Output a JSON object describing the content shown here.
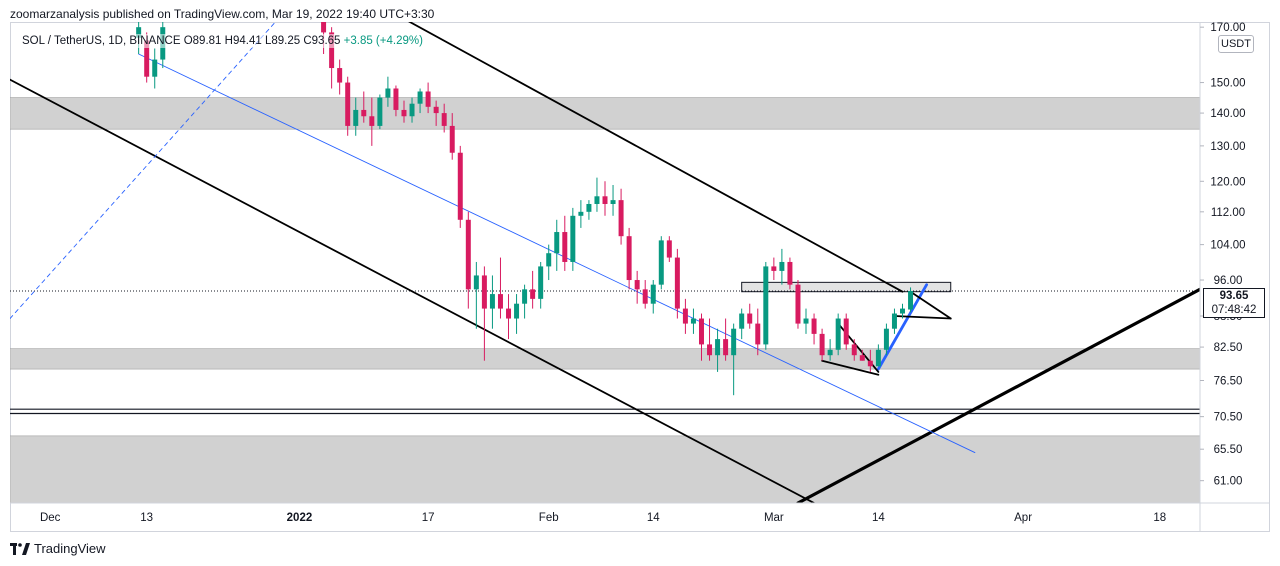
{
  "header": {
    "published_line": "zoomarzanalysis published on TradingView.com, Mar 19, 2022 19:40 UTC+3:30"
  },
  "legend": {
    "symbol": "SOL / TetherUS, 1D, BINANCE",
    "open": "O89.81",
    "high": "H94.41",
    "low": "L89.25",
    "close": "C93.65",
    "change": "+3.85 (+4.29%)"
  },
  "price_axis": {
    "currency": "USDT",
    "last_price": "93.65",
    "countdown": "07:48:42"
  },
  "footer": {
    "brand": "TradingView"
  },
  "colors": {
    "up": "#089981",
    "down": "#d81b60",
    "zone": "#d1d1d1",
    "trendline": "#000000",
    "blue": "#2962ff"
  },
  "chart_data": {
    "type": "candlestick",
    "y_scale": "log",
    "ylim": [
      58,
      172
    ],
    "xlim": [
      "2021-11-26",
      "2022-04-23"
    ],
    "y_ticks": [
      "170.00",
      "150.00",
      "140.00",
      "130.00",
      "120.00",
      "112.00",
      "104.00",
      "96.00",
      "88.50",
      "82.50",
      "76.50",
      "70.50",
      "65.50",
      "61.00"
    ],
    "x_ticks": [
      {
        "label": "Dec",
        "date": "2021-12-01"
      },
      {
        "label": "13",
        "date": "2021-12-13"
      },
      {
        "label": "2022",
        "date": "2022-01-01"
      },
      {
        "label": "17",
        "date": "2022-01-17"
      },
      {
        "label": "Feb",
        "date": "2022-02-01"
      },
      {
        "label": "14",
        "date": "2022-02-14"
      },
      {
        "label": "Mar",
        "date": "2022-03-01"
      },
      {
        "label": "14",
        "date": "2022-03-14"
      },
      {
        "label": "Apr",
        "date": "2022-04-01"
      },
      {
        "label": "18",
        "date": "2022-04-18"
      }
    ],
    "candles": [
      {
        "d": "2021-12-12",
        "o": 166,
        "h": 172,
        "l": 160,
        "c": 170
      },
      {
        "d": "2021-12-13",
        "o": 165,
        "h": 168,
        "l": 150,
        "c": 152
      },
      {
        "d": "2021-12-14",
        "o": 152,
        "h": 162,
        "l": 148,
        "c": 158
      },
      {
        "d": "2021-12-15",
        "o": 158,
        "h": 172,
        "l": 155,
        "c": 170
      },
      {
        "d": "2022-01-04",
        "o": 172,
        "h": 172,
        "l": 160,
        "c": 168
      },
      {
        "d": "2022-01-05",
        "o": 168,
        "h": 170,
        "l": 148,
        "c": 155
      },
      {
        "d": "2022-01-06",
        "o": 155,
        "h": 158,
        "l": 146,
        "c": 150
      },
      {
        "d": "2022-01-07",
        "o": 150,
        "h": 152,
        "l": 133,
        "c": 136
      },
      {
        "d": "2022-01-08",
        "o": 136,
        "h": 145,
        "l": 133,
        "c": 141
      },
      {
        "d": "2022-01-09",
        "o": 141,
        "h": 147,
        "l": 137,
        "c": 139
      },
      {
        "d": "2022-01-10",
        "o": 139,
        "h": 145,
        "l": 130,
        "c": 136
      },
      {
        "d": "2022-01-11",
        "o": 136,
        "h": 146,
        "l": 135,
        "c": 145
      },
      {
        "d": "2022-01-12",
        "o": 145,
        "h": 152,
        "l": 142,
        "c": 148
      },
      {
        "d": "2022-01-13",
        "o": 148,
        "h": 149,
        "l": 139,
        "c": 141
      },
      {
        "d": "2022-01-14",
        "o": 141,
        "h": 144,
        "l": 137,
        "c": 139
      },
      {
        "d": "2022-01-15",
        "o": 139,
        "h": 145,
        "l": 137,
        "c": 143
      },
      {
        "d": "2022-01-16",
        "o": 143,
        "h": 148,
        "l": 140,
        "c": 147
      },
      {
        "d": "2022-01-17",
        "o": 147,
        "h": 150,
        "l": 140,
        "c": 142
      },
      {
        "d": "2022-01-18",
        "o": 142,
        "h": 144,
        "l": 136,
        "c": 140
      },
      {
        "d": "2022-01-19",
        "o": 140,
        "h": 143,
        "l": 134,
        "c": 136
      },
      {
        "d": "2022-01-20",
        "o": 136,
        "h": 140,
        "l": 126,
        "c": 128
      },
      {
        "d": "2022-01-21",
        "o": 128,
        "h": 130,
        "l": 108,
        "c": 110
      },
      {
        "d": "2022-01-22",
        "o": 110,
        "h": 112,
        "l": 90,
        "c": 94
      },
      {
        "d": "2022-01-23",
        "o": 94,
        "h": 100,
        "l": 86,
        "c": 97
      },
      {
        "d": "2022-01-24",
        "o": 97,
        "h": 99,
        "l": 80,
        "c": 90
      },
      {
        "d": "2022-01-25",
        "o": 90,
        "h": 97,
        "l": 86,
        "c": 93
      },
      {
        "d": "2022-01-26",
        "o": 93,
        "h": 101,
        "l": 88,
        "c": 90
      },
      {
        "d": "2022-01-27",
        "o": 90,
        "h": 93,
        "l": 84,
        "c": 88
      },
      {
        "d": "2022-01-28",
        "o": 88,
        "h": 93,
        "l": 85,
        "c": 91
      },
      {
        "d": "2022-01-29",
        "o": 91,
        "h": 95,
        "l": 88,
        "c": 94
      },
      {
        "d": "2022-01-30",
        "o": 94,
        "h": 98,
        "l": 90,
        "c": 92
      },
      {
        "d": "2022-01-31",
        "o": 92,
        "h": 100,
        "l": 90,
        "c": 99
      },
      {
        "d": "2022-02-01",
        "o": 99,
        "h": 104,
        "l": 96,
        "c": 102
      },
      {
        "d": "2022-02-02",
        "o": 102,
        "h": 110,
        "l": 98,
        "c": 107
      },
      {
        "d": "2022-02-03",
        "o": 107,
        "h": 111,
        "l": 98,
        "c": 100
      },
      {
        "d": "2022-02-04",
        "o": 100,
        "h": 113,
        "l": 98,
        "c": 111
      },
      {
        "d": "2022-02-05",
        "o": 111,
        "h": 115,
        "l": 108,
        "c": 112
      },
      {
        "d": "2022-02-06",
        "o": 112,
        "h": 115,
        "l": 110,
        "c": 114
      },
      {
        "d": "2022-02-07",
        "o": 114,
        "h": 121,
        "l": 112,
        "c": 116
      },
      {
        "d": "2022-02-08",
        "o": 116,
        "h": 120,
        "l": 111,
        "c": 114
      },
      {
        "d": "2022-02-09",
        "o": 114,
        "h": 119,
        "l": 111,
        "c": 115
      },
      {
        "d": "2022-02-10",
        "o": 115,
        "h": 118,
        "l": 104,
        "c": 106
      },
      {
        "d": "2022-02-11",
        "o": 106,
        "h": 108,
        "l": 94,
        "c": 96
      },
      {
        "d": "2022-02-12",
        "o": 96,
        "h": 98,
        "l": 91,
        "c": 94
      },
      {
        "d": "2022-02-13",
        "o": 94,
        "h": 96,
        "l": 90,
        "c": 91
      },
      {
        "d": "2022-02-14",
        "o": 91,
        "h": 96,
        "l": 89,
        "c": 95
      },
      {
        "d": "2022-02-15",
        "o": 95,
        "h": 106,
        "l": 94,
        "c": 105
      },
      {
        "d": "2022-02-16",
        "o": 105,
        "h": 106,
        "l": 100,
        "c": 101
      },
      {
        "d": "2022-02-17",
        "o": 101,
        "h": 103,
        "l": 88,
        "c": 90
      },
      {
        "d": "2022-02-18",
        "o": 90,
        "h": 92,
        "l": 85,
        "c": 87
      },
      {
        "d": "2022-02-19",
        "o": 87,
        "h": 90,
        "l": 85,
        "c": 88
      },
      {
        "d": "2022-02-20",
        "o": 88,
        "h": 89,
        "l": 80,
        "c": 83
      },
      {
        "d": "2022-02-21",
        "o": 83,
        "h": 88,
        "l": 80,
        "c": 81
      },
      {
        "d": "2022-02-22",
        "o": 81,
        "h": 86,
        "l": 78,
        "c": 84
      },
      {
        "d": "2022-02-23",
        "o": 84,
        "h": 88,
        "l": 80,
        "c": 81
      },
      {
        "d": "2022-02-24",
        "o": 81,
        "h": 87,
        "l": 74,
        "c": 86
      },
      {
        "d": "2022-02-25",
        "o": 86,
        "h": 90,
        "l": 84,
        "c": 89
      },
      {
        "d": "2022-02-26",
        "o": 89,
        "h": 91,
        "l": 86,
        "c": 87
      },
      {
        "d": "2022-02-27",
        "o": 87,
        "h": 90,
        "l": 81,
        "c": 83
      },
      {
        "d": "2022-02-28",
        "o": 83,
        "h": 100,
        "l": 82,
        "c": 99
      },
      {
        "d": "2022-03-01",
        "o": 99,
        "h": 101,
        "l": 96,
        "c": 98
      },
      {
        "d": "2022-03-02",
        "o": 98,
        "h": 103,
        "l": 95,
        "c": 100
      },
      {
        "d": "2022-03-03",
        "o": 100,
        "h": 101,
        "l": 94,
        "c": 95
      },
      {
        "d": "2022-03-04",
        "o": 95,
        "h": 96,
        "l": 86,
        "c": 87
      },
      {
        "d": "2022-03-05",
        "o": 87,
        "h": 90,
        "l": 85,
        "c": 88
      },
      {
        "d": "2022-03-06",
        "o": 88,
        "h": 89,
        "l": 83,
        "c": 85
      },
      {
        "d": "2022-03-07",
        "o": 85,
        "h": 86,
        "l": 80,
        "c": 81
      },
      {
        "d": "2022-03-08",
        "o": 81,
        "h": 84,
        "l": 80,
        "c": 82
      },
      {
        "d": "2022-03-09",
        "o": 82,
        "h": 89,
        "l": 81,
        "c": 88
      },
      {
        "d": "2022-03-10",
        "o": 88,
        "h": 89,
        "l": 82,
        "c": 83
      },
      {
        "d": "2022-03-11",
        "o": 83,
        "h": 84,
        "l": 80,
        "c": 81
      },
      {
        "d": "2022-03-12",
        "o": 81,
        "h": 82,
        "l": 80,
        "c": 80
      },
      {
        "d": "2022-03-13",
        "o": 80,
        "h": 82,
        "l": 78,
        "c": 79
      },
      {
        "d": "2022-03-14",
        "o": 79,
        "h": 83,
        "l": 79,
        "c": 82
      },
      {
        "d": "2022-03-15",
        "o": 82,
        "h": 87,
        "l": 81,
        "c": 86
      },
      {
        "d": "2022-03-16",
        "o": 86,
        "h": 90,
        "l": 85,
        "c": 89
      },
      {
        "d": "2022-03-17",
        "o": 89,
        "h": 91,
        "l": 88,
        "c": 90
      },
      {
        "d": "2022-03-18",
        "o": 89.81,
        "h": 94.41,
        "l": 89.25,
        "c": 93.65
      }
    ],
    "zones": [
      {
        "from": 135,
        "to": 145
      },
      {
        "from": 78.5,
        "to": 82.2
      },
      {
        "from": 58,
        "to": 67.5
      },
      {
        "from": 93.5,
        "to": 95.5,
        "x0": "2022-02-25",
        "x1": "2022-03-23"
      }
    ],
    "hlines": [
      71.0,
      71.7
    ],
    "current_price": 93.65,
    "trendlines": [
      {
        "x0": "2021-11-26",
        "y0": 151,
        "x1": "2022-03-06",
        "y1": 58,
        "style": "black"
      },
      {
        "x0": "2022-01-13",
        "y0": 175,
        "x1": "2022-03-17",
        "y1": 93.5,
        "style": "black"
      },
      {
        "x0": "2022-03-04",
        "y0": 58,
        "x1": "2022-04-23",
        "y1": 94,
        "style": "black-thick"
      },
      {
        "x0": "2021-12-12",
        "y0": 160,
        "x1": "2022-03-26",
        "y1": 65,
        "style": "blue"
      },
      {
        "x0": "2021-11-26",
        "y0": 88,
        "x1": "2021-12-29",
        "y1": 172,
        "style": "blue-dash"
      },
      {
        "x0": "2022-03-14",
        "y0": 78.5,
        "x1": "2022-03-20",
        "y1": 95,
        "style": "blue-thick"
      },
      {
        "x0": "2022-03-09",
        "y0": 87,
        "x1": "2022-03-14",
        "y1": 78,
        "style": "black"
      },
      {
        "x0": "2022-03-07",
        "y0": 80,
        "x1": "2022-03-14",
        "y1": 77.5,
        "style": "black"
      },
      {
        "x0": "2022-03-16",
        "y0": 88.5,
        "x1": "2022-03-23",
        "y1": 88,
        "style": "black"
      },
      {
        "x0": "2022-03-18",
        "y0": 93.5,
        "x1": "2022-03-23",
        "y1": 88,
        "style": "black"
      }
    ]
  }
}
